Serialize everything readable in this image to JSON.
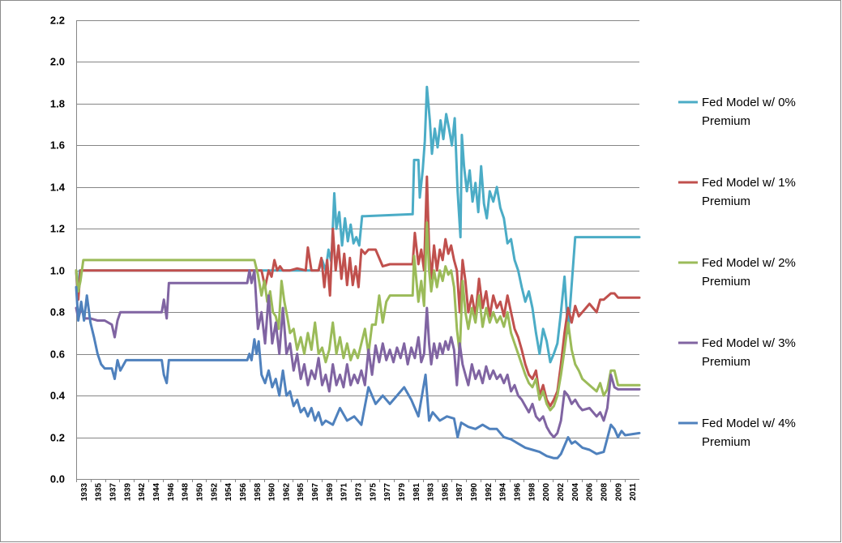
{
  "chart_data": {
    "type": "line",
    "title": "",
    "xlabel": "",
    "ylabel": "",
    "ylim": [
      0,
      2.2
    ],
    "xlim": [
      1933,
      2012
    ],
    "grid": true,
    "legend_position": "right",
    "y_ticks": [
      "0.0",
      "0.2",
      "0.4",
      "0.6",
      "0.8",
      "1.0",
      "1.2",
      "1.4",
      "1.6",
      "1.8",
      "2.0",
      "2.2"
    ],
    "x_tick_labels": [
      "1933",
      "1935",
      "1937",
      "1939",
      "1942",
      "1944",
      "1946",
      "1948",
      "1950",
      "1952",
      "1954",
      "1956",
      "1958",
      "1960",
      "1962",
      "1965",
      "1967",
      "1969",
      "1971",
      "1973",
      "1975",
      "1977",
      "1979",
      "1981",
      "1983",
      "1985",
      "1987",
      "1990",
      "1992",
      "1994",
      "1996",
      "1998",
      "2000",
      "2002",
      "2004",
      "2006",
      "2008",
      "2009",
      "2011"
    ],
    "series": [
      {
        "name": "Fed Model w/ 0% Premium",
        "color": "#4bacc6",
        "x": [
          1933,
          1933.2,
          1933.5,
          1934.5,
          1959,
          1967,
          1967.5,
          1968,
          1968.4,
          1968.8,
          1969.2,
          1969.5,
          1969.9,
          1970.3,
          1970.7,
          1971.1,
          1971.5,
          1971.9,
          1972.3,
          1972.7,
          1973.1,
          1973.5,
          1980.2,
          1980.4,
          1981,
          1981.2,
          1981.6,
          1981.9,
          1982.2,
          1982.6,
          1982.9,
          1983.3,
          1983.7,
          1984.1,
          1984.5,
          1984.9,
          1985.3,
          1985.7,
          1986.1,
          1986.5,
          1986.9,
          1987.1,
          1987.4,
          1987.8,
          1988.2,
          1988.6,
          1989,
          1989.4,
          1989.8,
          1990.2,
          1990.6,
          1991,
          1991.5,
          1992,
          1992.5,
          1993,
          1993.5,
          1994,
          1994.5,
          1995,
          1995.5,
          1996,
          1996.5,
          1997,
          1997.5,
          1998,
          1998.5,
          1999,
          1999.5,
          2000,
          2000.5,
          2001,
          2001.5,
          2002,
          2003,
          2006,
          2008,
          2012
        ],
        "values": [
          1.0,
          0.88,
          1.0,
          1.0,
          1.0,
          1.0,
          1.05,
          1.0,
          1.1,
          1.04,
          1.37,
          1.2,
          1.28,
          1.12,
          1.25,
          1.14,
          1.22,
          1.13,
          1.16,
          1.12,
          1.26,
          1.26,
          1.27,
          1.53,
          1.53,
          1.35,
          1.48,
          1.62,
          1.88,
          1.72,
          1.56,
          1.68,
          1.59,
          1.72,
          1.63,
          1.75,
          1.68,
          1.6,
          1.73,
          1.38,
          1.16,
          1.65,
          1.5,
          1.38,
          1.48,
          1.33,
          1.42,
          1.28,
          1.5,
          1.32,
          1.25,
          1.38,
          1.33,
          1.4,
          1.3,
          1.25,
          1.13,
          1.15,
          1.05,
          1.0,
          0.92,
          0.85,
          0.9,
          0.82,
          0.7,
          0.6,
          0.72,
          0.66,
          0.56,
          0.6,
          0.65,
          0.8,
          0.97,
          0.7,
          1.16,
          1.16,
          1.16,
          1.16
        ]
      },
      {
        "name": "Fed Model w/ 1% Premium",
        "color": "#c0504d",
        "x": [
          1933,
          1933.3,
          1933.6,
          1959,
          1959.5,
          1960,
          1960.4,
          1960.8,
          1961.2,
          1961.6,
          1962,
          1963,
          1964,
          1965.2,
          1965.5,
          1966,
          1967,
          1967.4,
          1967.8,
          1968.2,
          1968.6,
          1969,
          1969.4,
          1969.8,
          1970.2,
          1970.6,
          1971,
          1971.4,
          1971.8,
          1972.2,
          1972.6,
          1973,
          1973.5,
          1974,
          1975,
          1976,
          1977,
          1978,
          1979,
          1980.2,
          1980.5,
          1981,
          1981.4,
          1981.8,
          1982.2,
          1982.5,
          1982.8,
          1983.2,
          1983.6,
          1984,
          1984.4,
          1984.8,
          1985.2,
          1985.6,
          1986,
          1986.4,
          1986.8,
          1987.2,
          1987.6,
          1988,
          1988.5,
          1989,
          1989.5,
          1990,
          1990.5,
          1991,
          1991.5,
          1992,
          1992.5,
          1993,
          1993.5,
          1994,
          1994.5,
          1995,
          1995.5,
          1996,
          1996.5,
          1997,
          1997.5,
          1998,
          1998.5,
          1999,
          1999.5,
          2000,
          2000.5,
          2001,
          2001.5,
          2002,
          2002.5,
          2003,
          2003.5,
          2004,
          2005,
          2006,
          2006.5,
          2007,
          2008,
          2008.5,
          2009,
          2012
        ],
        "values": [
          1.0,
          0.86,
          1.0,
          1.0,
          0.92,
          1.0,
          0.97,
          1.05,
          1.0,
          1.02,
          1.0,
          1.0,
          1.01,
          1.0,
          1.11,
          1.0,
          1.0,
          1.06,
          0.92,
          1.05,
          0.88,
          1.2,
          1.0,
          1.12,
          0.96,
          1.08,
          0.93,
          1.06,
          0.93,
          1.02,
          0.92,
          1.1,
          1.08,
          1.1,
          1.1,
          1.02,
          1.03,
          1.03,
          1.03,
          1.03,
          1.18,
          1.03,
          1.1,
          1.0,
          1.45,
          1.1,
          0.96,
          1.12,
          1.0,
          1.1,
          1.05,
          1.15,
          1.08,
          1.12,
          1.05,
          1.0,
          0.8,
          1.05,
          0.95,
          0.8,
          0.88,
          0.78,
          0.96,
          0.82,
          0.9,
          0.78,
          0.88,
          0.82,
          0.85,
          0.78,
          0.88,
          0.8,
          0.72,
          0.68,
          0.62,
          0.55,
          0.5,
          0.48,
          0.52,
          0.4,
          0.45,
          0.38,
          0.35,
          0.38,
          0.42,
          0.55,
          0.7,
          0.82,
          0.75,
          0.83,
          0.78,
          0.8,
          0.84,
          0.8,
          0.86,
          0.86,
          0.89,
          0.89,
          0.87,
          0.87
        ]
      },
      {
        "name": "Fed Model w/ 2% Premium",
        "color": "#9bbb59",
        "x": [
          1933,
          1933.3,
          1933.6,
          1934,
          1934.5,
          1958,
          1958.5,
          1959,
          1959.4,
          1959.8,
          1960.2,
          1960.6,
          1961,
          1961.4,
          1961.8,
          1962.2,
          1962.6,
          1963,
          1963.5,
          1964,
          1964.5,
          1965,
          1965.5,
          1966,
          1966.5,
          1967,
          1967.5,
          1968,
          1968.5,
          1969,
          1969.5,
          1970,
          1970.5,
          1971,
          1971.5,
          1972,
          1972.5,
          1973,
          1973.5,
          1974,
          1974.5,
          1975,
          1975.5,
          1976,
          1976.5,
          1977,
          1977.5,
          1978,
          1979,
          1980.2,
          1980.4,
          1981,
          1981.4,
          1981.8,
          1982.2,
          1982.5,
          1982.8,
          1983.2,
          1983.6,
          1984,
          1984.4,
          1984.8,
          1985.2,
          1985.6,
          1986,
          1986.4,
          1986.8,
          1987.2,
          1987.6,
          1988,
          1988.5,
          1989,
          1989.5,
          1990,
          1990.5,
          1991,
          1991.5,
          1992,
          1992.5,
          1993,
          1993.5,
          1994,
          1994.5,
          1995,
          1995.5,
          1996,
          1996.5,
          1997,
          1997.5,
          1998,
          1998.5,
          1999,
          1999.5,
          2000,
          2000.5,
          2001,
          2001.5,
          2002,
          2002.5,
          2003,
          2003.5,
          2004,
          2005,
          2006,
          2006.5,
          2007,
          2007.5,
          2008,
          2008.5,
          2009,
          2012
        ],
        "values": [
          1.0,
          0.9,
          0.95,
          1.05,
          1.05,
          1.05,
          0.98,
          0.88,
          0.95,
          0.85,
          0.9,
          0.8,
          0.78,
          0.72,
          0.95,
          0.85,
          0.78,
          0.7,
          0.72,
          0.62,
          0.68,
          0.6,
          0.7,
          0.62,
          0.75,
          0.6,
          0.63,
          0.56,
          0.62,
          0.75,
          0.6,
          0.68,
          0.58,
          0.65,
          0.57,
          0.62,
          0.58,
          0.65,
          0.72,
          0.6,
          0.74,
          0.74,
          0.88,
          0.75,
          0.85,
          0.88,
          0.88,
          0.88,
          0.88,
          0.88,
          1.07,
          0.85,
          0.95,
          0.83,
          1.23,
          1.0,
          0.9,
          1.0,
          0.92,
          1.0,
          0.95,
          1.02,
          0.98,
          1.0,
          0.92,
          0.72,
          0.6,
          0.95,
          0.8,
          0.72,
          0.82,
          0.75,
          0.88,
          0.73,
          0.82,
          0.75,
          0.8,
          0.75,
          0.78,
          0.73,
          0.8,
          0.7,
          0.65,
          0.6,
          0.55,
          0.5,
          0.46,
          0.44,
          0.48,
          0.38,
          0.42,
          0.36,
          0.33,
          0.35,
          0.4,
          0.5,
          0.62,
          0.75,
          0.62,
          0.55,
          0.52,
          0.48,
          0.45,
          0.42,
          0.46,
          0.4,
          0.43,
          0.52,
          0.52,
          0.45,
          0.45
        ]
      },
      {
        "name": "Fed Model w/ 3% Premium",
        "color": "#8064a2",
        "x": [
          1933,
          1933.3,
          1933.7,
          1934.2,
          1935,
          1936,
          1937,
          1938,
          1938.4,
          1938.8,
          1939.2,
          1940,
          1942,
          1944,
          1945,
          1945.3,
          1945.7,
          1946,
          1948,
          1950,
          1952,
          1954,
          1956,
          1957,
          1957.3,
          1957.6,
          1958,
          1958.5,
          1959,
          1959.5,
          1960,
          1960.5,
          1961,
          1961.5,
          1962,
          1962.5,
          1963,
          1963.5,
          1964,
          1964.5,
          1965,
          1965.5,
          1966,
          1966.5,
          1967,
          1967.5,
          1968,
          1968.5,
          1969,
          1969.5,
          1970,
          1970.5,
          1971,
          1971.5,
          1972,
          1972.5,
          1973,
          1973.5,
          1974,
          1974.5,
          1975,
          1975.5,
          1976,
          1976.5,
          1977,
          1977.5,
          1978,
          1978.5,
          1979,
          1979.5,
          1980,
          1980.5,
          1981,
          1981.4,
          1981.8,
          1982.2,
          1982.5,
          1982.8,
          1983.2,
          1983.6,
          1984,
          1984.4,
          1984.8,
          1985.2,
          1985.6,
          1986,
          1986.4,
          1986.8,
          1987.2,
          1987.6,
          1988,
          1988.5,
          1989,
          1989.5,
          1990,
          1990.5,
          1991,
          1991.5,
          1992,
          1992.5,
          1993,
          1993.5,
          1994,
          1994.5,
          1995,
          1995.5,
          1996,
          1996.5,
          1997,
          1997.5,
          1998,
          1998.5,
          1999,
          1999.5,
          2000,
          2000.5,
          2001,
          2001.5,
          2002,
          2002.5,
          2003,
          2003.5,
          2004,
          2005,
          2006,
          2006.5,
          2007,
          2007.5,
          2008,
          2008.5,
          2009,
          2009.5,
          2012
        ],
        "values": [
          0.82,
          0.77,
          0.82,
          0.77,
          0.77,
          0.76,
          0.76,
          0.74,
          0.68,
          0.76,
          0.8,
          0.8,
          0.8,
          0.8,
          0.8,
          0.86,
          0.77,
          0.94,
          0.94,
          0.94,
          0.94,
          0.94,
          0.94,
          0.94,
          1.0,
          0.94,
          1.0,
          0.72,
          0.8,
          0.65,
          0.88,
          0.65,
          0.75,
          0.6,
          0.82,
          0.6,
          0.65,
          0.52,
          0.6,
          0.48,
          0.55,
          0.45,
          0.52,
          0.48,
          0.58,
          0.45,
          0.5,
          0.42,
          0.55,
          0.45,
          0.5,
          0.44,
          0.55,
          0.45,
          0.5,
          0.46,
          0.52,
          0.45,
          0.62,
          0.5,
          0.64,
          0.56,
          0.65,
          0.57,
          0.62,
          0.56,
          0.63,
          0.58,
          0.65,
          0.55,
          0.63,
          0.58,
          0.68,
          0.56,
          0.6,
          0.82,
          0.65,
          0.55,
          0.65,
          0.58,
          0.65,
          0.6,
          0.66,
          0.62,
          0.68,
          0.62,
          0.45,
          0.65,
          0.55,
          0.5,
          0.45,
          0.55,
          0.48,
          0.52,
          0.46,
          0.54,
          0.48,
          0.52,
          0.48,
          0.5,
          0.46,
          0.5,
          0.42,
          0.45,
          0.4,
          0.38,
          0.35,
          0.32,
          0.36,
          0.3,
          0.28,
          0.3,
          0.25,
          0.22,
          0.2,
          0.22,
          0.28,
          0.42,
          0.4,
          0.36,
          0.38,
          0.35,
          0.33,
          0.34,
          0.3,
          0.32,
          0.28,
          0.34,
          0.5,
          0.44,
          0.43,
          0.43,
          0.43
        ]
      },
      {
        "name": "Fed Model w/ 4% Premium",
        "color": "#4f81bd",
        "x": [
          1933,
          1933.3,
          1933.7,
          1934.1,
          1934.5,
          1935,
          1935.5,
          1936,
          1936.5,
          1937,
          1938,
          1938.4,
          1938.8,
          1939.2,
          1940,
          1942,
          1944,
          1945,
          1945.3,
          1945.7,
          1946,
          1948,
          1950,
          1952,
          1954,
          1956,
          1957,
          1957.3,
          1957.6,
          1958,
          1958.3,
          1958.6,
          1959,
          1959.5,
          1960,
          1960.5,
          1961,
          1961.5,
          1962,
          1962.5,
          1963,
          1963.5,
          1964,
          1964.5,
          1965,
          1965.5,
          1966,
          1966.5,
          1967,
          1967.5,
          1968,
          1969,
          1970,
          1971,
          1972,
          1973,
          1974,
          1975,
          1976,
          1977,
          1978,
          1979,
          1980,
          1981,
          1982,
          1982.5,
          1983,
          1984,
          1985,
          1986,
          1986.5,
          1987,
          1988,
          1989,
          1990,
          1991,
          1992,
          1993,
          1994,
          1995,
          1996,
          1997,
          1998,
          1999,
          2000,
          2000.5,
          2001,
          2002,
          2002.5,
          2003,
          2004,
          2005,
          2006,
          2007,
          2008,
          2008.5,
          2009,
          2009.5,
          2010,
          2012
        ],
        "values": [
          0.92,
          0.76,
          0.85,
          0.76,
          0.88,
          0.75,
          0.68,
          0.6,
          0.55,
          0.53,
          0.53,
          0.48,
          0.57,
          0.52,
          0.57,
          0.57,
          0.57,
          0.57,
          0.5,
          0.46,
          0.57,
          0.57,
          0.57,
          0.57,
          0.57,
          0.57,
          0.57,
          0.6,
          0.57,
          0.67,
          0.6,
          0.66,
          0.5,
          0.46,
          0.52,
          0.44,
          0.48,
          0.4,
          0.52,
          0.4,
          0.42,
          0.35,
          0.38,
          0.32,
          0.34,
          0.3,
          0.34,
          0.28,
          0.32,
          0.26,
          0.28,
          0.26,
          0.34,
          0.28,
          0.3,
          0.26,
          0.44,
          0.36,
          0.4,
          0.36,
          0.4,
          0.44,
          0.38,
          0.3,
          0.5,
          0.28,
          0.32,
          0.28,
          0.3,
          0.29,
          0.2,
          0.27,
          0.25,
          0.24,
          0.26,
          0.24,
          0.24,
          0.2,
          0.19,
          0.17,
          0.15,
          0.14,
          0.13,
          0.11,
          0.1,
          0.1,
          0.12,
          0.2,
          0.17,
          0.18,
          0.15,
          0.14,
          0.12,
          0.13,
          0.26,
          0.24,
          0.2,
          0.23,
          0.21,
          0.22
        ]
      }
    ]
  }
}
